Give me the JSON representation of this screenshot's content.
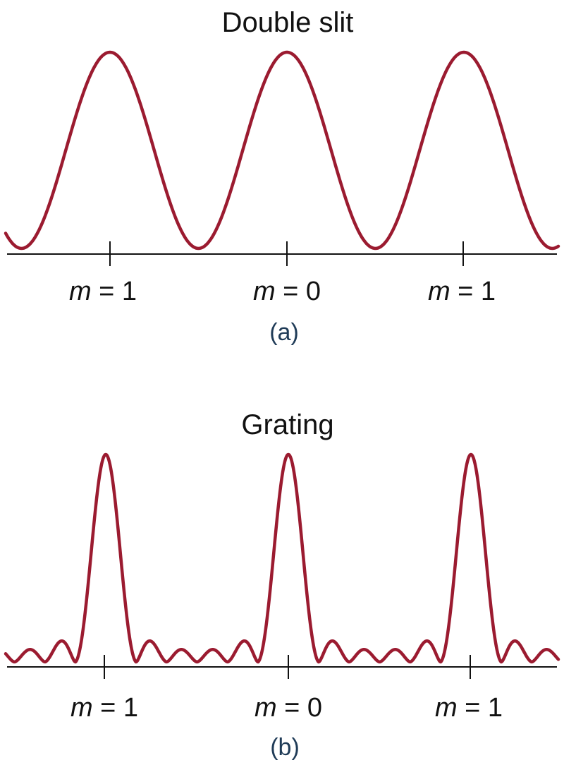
{
  "colors": {
    "curve": "#9b1b30",
    "axis": "#111111",
    "caption": "#1f3b57"
  },
  "panel_a": {
    "title": "Double slit",
    "caption": "(a)",
    "orders": [
      {
        "m": "m",
        "eq": " = ",
        "value": "1"
      },
      {
        "m": "m",
        "eq": " = ",
        "value": "0"
      },
      {
        "m": "m",
        "eq": " = ",
        "value": "1"
      }
    ]
  },
  "panel_b": {
    "title": "Grating",
    "caption": "(b)",
    "orders": [
      {
        "m": "m",
        "eq": " = ",
        "value": "1"
      },
      {
        "m": "m",
        "eq": " = ",
        "value": "0"
      },
      {
        "m": "m",
        "eq": " = ",
        "value": "1"
      }
    ]
  }
}
